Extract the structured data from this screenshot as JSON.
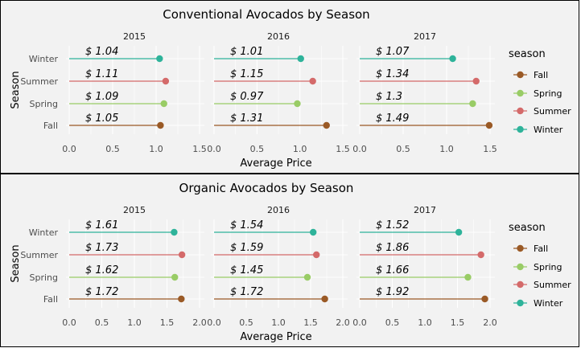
{
  "chart_data": [
    {
      "type": "lollipop",
      "title": "Conventional Avocados by Season",
      "xlabel": "Average Price",
      "ylabel": "Season",
      "legend": {
        "title": "season",
        "entries": [
          "Fall",
          "Spring",
          "Summer",
          "Winter"
        ],
        "position": "right"
      },
      "categories": [
        "Fall",
        "Spring",
        "Summer",
        "Winter"
      ],
      "facets": [
        {
          "label": "2015",
          "values": [
            1.05,
            1.09,
            1.11,
            1.04
          ],
          "labels": [
            "$ 1.05",
            "$ 1.09",
            "$ 1.11",
            "$ 1.04"
          ]
        },
        {
          "label": "2016",
          "values": [
            1.31,
            0.97,
            1.15,
            1.01
          ],
          "labels": [
            "$ 1.31",
            "$ 0.97",
            "$ 1.15",
            "$ 1.01"
          ]
        },
        {
          "label": "2017",
          "values": [
            1.49,
            1.3,
            1.34,
            1.07
          ],
          "labels": [
            "$ 1.49",
            "$ 1.3",
            "$ 1.34",
            "$ 1.07"
          ]
        }
      ],
      "xlim": [
        0,
        1.5
      ],
      "xticks": [
        "0.0",
        "0.5",
        "1.0",
        "1.5"
      ],
      "grid": true
    },
    {
      "type": "lollipop",
      "title": "Organic Avocados by Season",
      "xlabel": "Average Price",
      "ylabel": "Season",
      "legend": {
        "title": "season",
        "entries": [
          "Fall",
          "Spring",
          "Summer",
          "Winter"
        ],
        "position": "right"
      },
      "categories": [
        "Fall",
        "Spring",
        "Summer",
        "Winter"
      ],
      "facets": [
        {
          "label": "2015",
          "values": [
            1.72,
            1.62,
            1.73,
            1.61
          ],
          "labels": [
            "$ 1.72",
            "$ 1.62",
            "$ 1.73",
            "$ 1.61"
          ]
        },
        {
          "label": "2016",
          "values": [
            1.72,
            1.45,
            1.59,
            1.54
          ],
          "labels": [
            "$ 1.72",
            "$ 1.45",
            "$ 1.59",
            "$ 1.54"
          ]
        },
        {
          "label": "2017",
          "values": [
            1.92,
            1.66,
            1.86,
            1.52
          ],
          "labels": [
            "$ 1.92",
            "$ 1.66",
            "$ 1.86",
            "$ 1.52"
          ]
        }
      ],
      "xlim": [
        0,
        2.0
      ],
      "xticks": [
        "0.0",
        "0.5",
        "1.0",
        "1.5",
        "2.0"
      ],
      "grid": true
    }
  ],
  "colors": {
    "Fall": "#9a5a26",
    "Spring": "#99cc66",
    "Summer": "#d46a6a",
    "Winter": "#2eb39a"
  }
}
